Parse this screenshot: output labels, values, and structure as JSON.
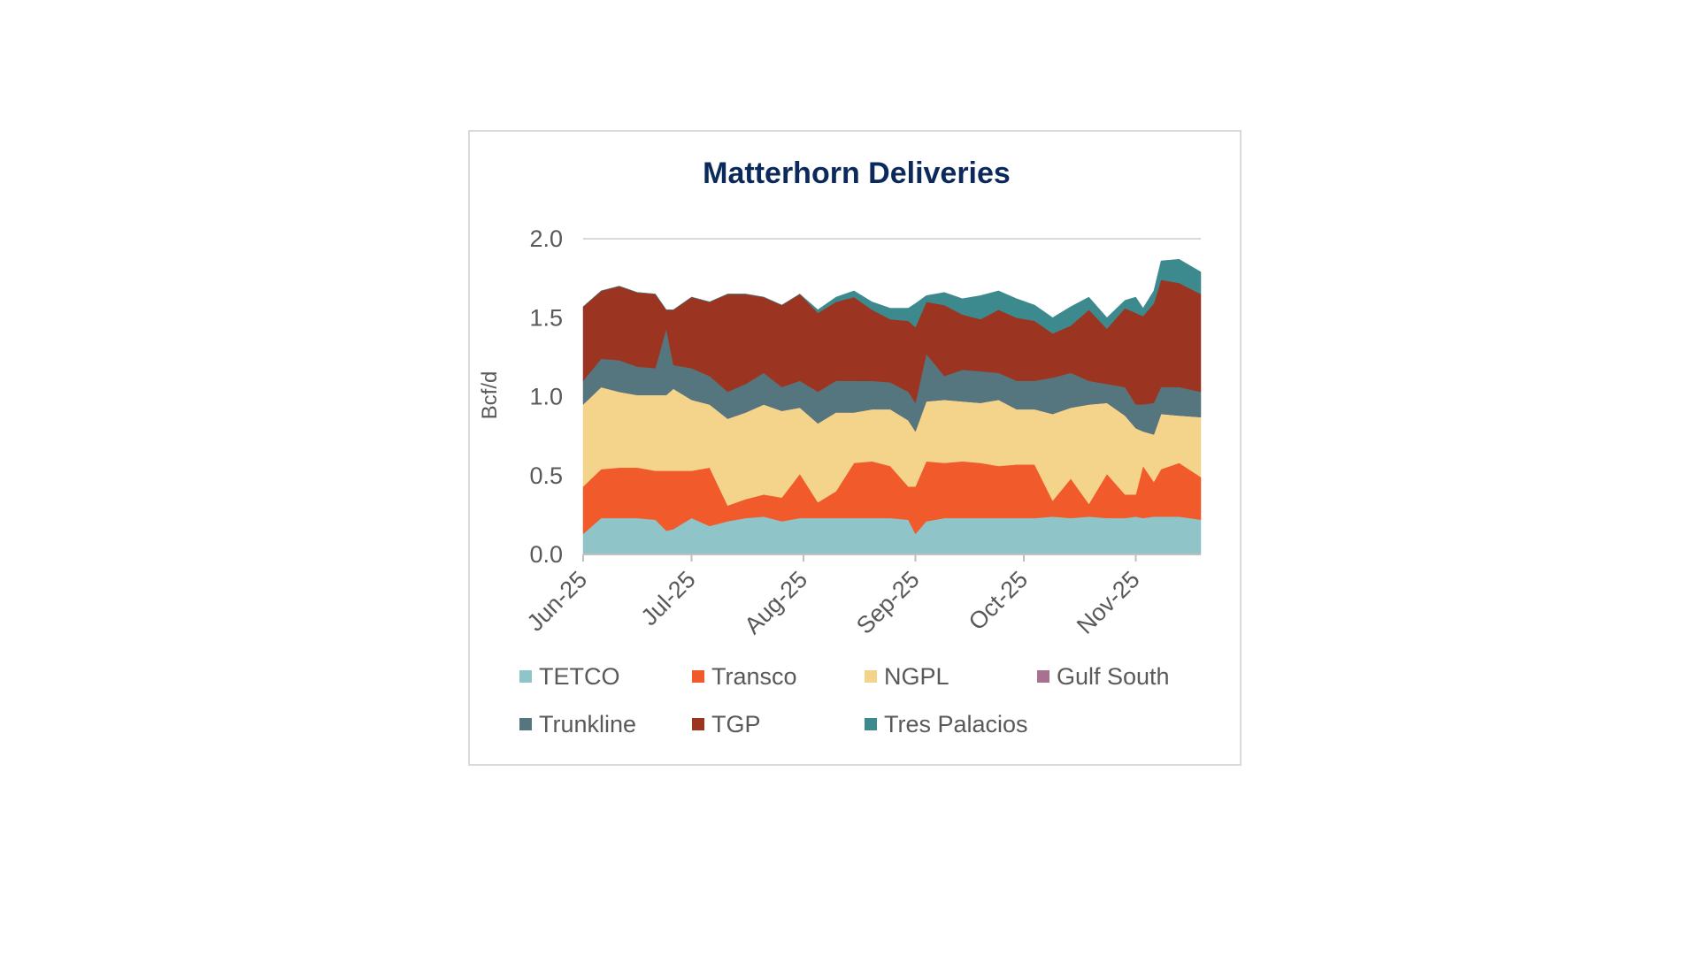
{
  "chart_data": {
    "type": "area",
    "stacked": true,
    "title": "Matterhorn Deliveries",
    "ylabel": "Bcf/d",
    "xlabel": "",
    "ylim": [
      0,
      2.0
    ],
    "yticks": [
      "0.0",
      "0.5",
      "1.0",
      "1.5",
      "2.0"
    ],
    "ytick_values": [
      0,
      0.5,
      1.0,
      1.5,
      2.0
    ],
    "x_ticks": [
      {
        "label": "Jun-25",
        "t": 0
      },
      {
        "label": "Jul-25",
        "t": 30
      },
      {
        "label": "Aug-25",
        "t": 61
      },
      {
        "label": "Sep-25",
        "t": 92
      },
      {
        "label": "Oct-25",
        "t": 122
      },
      {
        "label": "Nov-25",
        "t": 153
      }
    ],
    "x_range": [
      0,
      171
    ],
    "grid": false,
    "legend_position": "bottom",
    "x": [
      0,
      5,
      10,
      15,
      20,
      23,
      25,
      30,
      35,
      40,
      45,
      50,
      55,
      60,
      65,
      70,
      75,
      80,
      85,
      90,
      92,
      95,
      100,
      105,
      110,
      115,
      120,
      125,
      130,
      135,
      140,
      145,
      150,
      153,
      155,
      158,
      160,
      165,
      171
    ],
    "series": [
      {
        "name": "TETCO",
        "color": "#8fc5c8",
        "values": [
          0.13,
          0.23,
          0.23,
          0.23,
          0.22,
          0.15,
          0.16,
          0.23,
          0.18,
          0.21,
          0.23,
          0.24,
          0.21,
          0.23,
          0.23,
          0.23,
          0.23,
          0.23,
          0.23,
          0.22,
          0.13,
          0.21,
          0.23,
          0.23,
          0.23,
          0.23,
          0.23,
          0.23,
          0.24,
          0.23,
          0.24,
          0.23,
          0.23,
          0.24,
          0.23,
          0.24,
          0.24,
          0.24,
          0.22
        ]
      },
      {
        "name": "Transco",
        "color": "#f15a2b",
        "values": [
          0.3,
          0.31,
          0.32,
          0.32,
          0.31,
          0.38,
          0.37,
          0.3,
          0.37,
          0.1,
          0.12,
          0.14,
          0.15,
          0.28,
          0.1,
          0.17,
          0.35,
          0.36,
          0.33,
          0.21,
          0.3,
          0.38,
          0.35,
          0.36,
          0.35,
          0.33,
          0.34,
          0.34,
          0.1,
          0.25,
          0.08,
          0.28,
          0.15,
          0.14,
          0.33,
          0.22,
          0.3,
          0.34,
          0.27
        ]
      },
      {
        "name": "NGPL",
        "color": "#f4d48a",
        "values": [
          0.52,
          0.52,
          0.48,
          0.46,
          0.48,
          0.48,
          0.52,
          0.45,
          0.4,
          0.55,
          0.55,
          0.57,
          0.55,
          0.42,
          0.5,
          0.5,
          0.32,
          0.33,
          0.36,
          0.42,
          0.35,
          0.38,
          0.4,
          0.38,
          0.38,
          0.42,
          0.35,
          0.35,
          0.55,
          0.45,
          0.63,
          0.45,
          0.5,
          0.42,
          0.22,
          0.3,
          0.35,
          0.3,
          0.38
        ]
      },
      {
        "name": "Gulf South",
        "color": "#a8718f",
        "values": [
          0.0,
          0.0,
          0.0,
          0.0,
          0.0,
          0.0,
          0.0,
          0.0,
          0.0,
          0.0,
          0.0,
          0.0,
          0.0,
          0.0,
          0.0,
          0.0,
          0.0,
          0.0,
          0.0,
          0.0,
          0.0,
          0.0,
          0.0,
          0.0,
          0.0,
          0.0,
          0.0,
          0.0,
          0.0,
          0.0,
          0.0,
          0.0,
          0.0,
          0.0,
          0.0,
          0.0,
          0.0,
          0.0,
          0.0
        ]
      },
      {
        "name": "Trunkline",
        "color": "#56767f",
        "values": [
          0.15,
          0.18,
          0.2,
          0.18,
          0.17,
          0.42,
          0.15,
          0.2,
          0.18,
          0.17,
          0.18,
          0.2,
          0.15,
          0.17,
          0.2,
          0.2,
          0.2,
          0.18,
          0.17,
          0.18,
          0.18,
          0.3,
          0.15,
          0.2,
          0.2,
          0.17,
          0.18,
          0.18,
          0.23,
          0.22,
          0.15,
          0.12,
          0.18,
          0.15,
          0.17,
          0.2,
          0.17,
          0.18,
          0.16
        ]
      },
      {
        "name": "TGP",
        "color": "#9b3522",
        "values": [
          0.47,
          0.43,
          0.47,
          0.47,
          0.47,
          0.12,
          0.35,
          0.45,
          0.47,
          0.62,
          0.57,
          0.48,
          0.52,
          0.55,
          0.5,
          0.5,
          0.53,
          0.45,
          0.4,
          0.45,
          0.48,
          0.33,
          0.45,
          0.35,
          0.33,
          0.4,
          0.4,
          0.38,
          0.28,
          0.3,
          0.45,
          0.35,
          0.5,
          0.58,
          0.56,
          0.63,
          0.68,
          0.66,
          0.62
        ]
      },
      {
        "name": "Tres Palacios",
        "color": "#3d8a8e",
        "values": [
          0.0,
          0.0,
          0.0,
          0.0,
          0.0,
          0.0,
          0.0,
          0.0,
          0.0,
          0.0,
          0.0,
          0.0,
          0.0,
          0.0,
          0.02,
          0.03,
          0.04,
          0.05,
          0.07,
          0.08,
          0.15,
          0.04,
          0.08,
          0.1,
          0.15,
          0.12,
          0.12,
          0.1,
          0.1,
          0.12,
          0.08,
          0.07,
          0.05,
          0.1,
          0.05,
          0.08,
          0.12,
          0.15,
          0.14
        ]
      }
    ]
  }
}
